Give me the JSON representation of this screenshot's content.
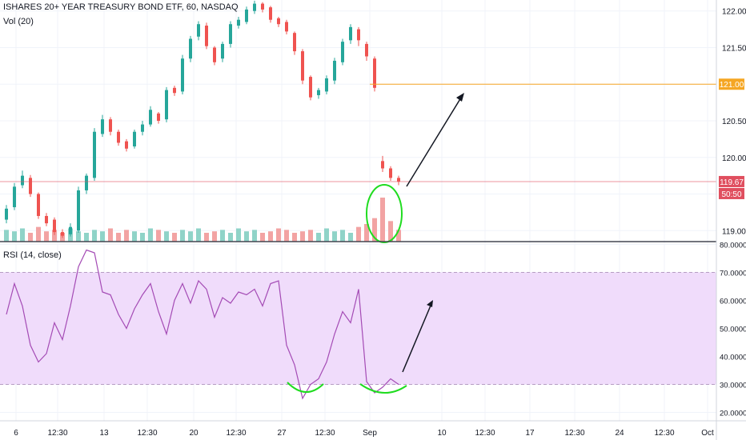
{
  "legend": {
    "symbol": "ISHARES 20+ YEAR TREASURY BOND ETF, 60, NASDAQ",
    "volume": "Vol (20)",
    "rsi": "RSI (14, close)"
  },
  "price_axis": {
    "ticks": [
      "122.00",
      "121.50",
      "121.00",
      "120.50",
      "120.00",
      "119.67",
      "50:50",
      "119.00"
    ],
    "target_label": "121.00",
    "current_label": "119.67",
    "countdown_label": "50:50",
    "target_color": "#f5a623",
    "current_color": "#e04f5f"
  },
  "rsi_axis": {
    "ticks": [
      "80.0000",
      "70.0000",
      "60.0000",
      "50.0000",
      "40.0000",
      "30.0000",
      "20.0000"
    ],
    "band_color": "#f0dcfb",
    "line_color": "#a44bb5"
  },
  "time_axis": {
    "ticks": [
      "6",
      "12:30",
      "13",
      "12:30",
      "20",
      "12:30",
      "27",
      "12:30",
      "Sep",
      "10",
      "12:30",
      "17",
      "12:30",
      "24",
      "12:30",
      "Oct"
    ]
  },
  "chart_data": [
    {
      "type": "candlestick",
      "title": "ISHARES 20+ YEAR TREASURY BOND ETF, 60, NASDAQ",
      "ylim": [
        118.85,
        122.15
      ],
      "annotations": [
        "121.00",
        "119.67"
      ],
      "x": [
        0,
        10,
        20,
        30,
        40,
        50,
        60,
        70,
        80,
        90,
        100,
        110,
        120,
        130,
        140,
        150,
        160,
        170,
        180,
        190,
        200,
        210,
        220,
        230,
        240,
        250,
        260,
        270,
        280,
        290,
        300,
        310,
        320,
        330,
        340,
        350,
        360,
        370,
        380,
        390,
        400,
        410,
        420,
        430,
        440,
        450,
        460,
        470,
        480,
        490
      ],
      "open": [
        119.15,
        119.32,
        119.62,
        119.72,
        119.5,
        119.2,
        119.15,
        118.98,
        118.95,
        119.0,
        119.55,
        119.72,
        120.32,
        120.52,
        120.35,
        120.22,
        120.15,
        120.35,
        120.45,
        120.6,
        120.52,
        120.95,
        120.9,
        121.35,
        121.65,
        121.8,
        121.5,
        121.35,
        121.55,
        121.8,
        121.85,
        122.0,
        122.1,
        122.05,
        121.9,
        121.85,
        121.7,
        121.45,
        121.1,
        120.85,
        120.9,
        121.05,
        121.3,
        121.6,
        121.75,
        121.55,
        121.35,
        119.95,
        119.85,
        119.72
      ],
      "close": [
        119.3,
        119.6,
        119.75,
        119.5,
        119.2,
        119.1,
        118.98,
        118.93,
        119.05,
        119.55,
        119.75,
        120.35,
        120.52,
        120.35,
        120.2,
        120.12,
        120.35,
        120.45,
        120.65,
        120.5,
        120.92,
        120.88,
        121.35,
        121.62,
        121.82,
        121.52,
        121.3,
        121.55,
        121.82,
        121.88,
        122.02,
        122.1,
        122.02,
        121.88,
        121.82,
        121.72,
        121.45,
        121.05,
        120.82,
        120.92,
        121.08,
        121.32,
        121.58,
        121.78,
        121.6,
        121.38,
        120.95,
        119.85,
        119.72,
        119.67
      ],
      "high": [
        119.35,
        119.65,
        119.82,
        119.76,
        119.52,
        119.24,
        119.18,
        119.02,
        119.1,
        119.6,
        119.78,
        120.4,
        120.58,
        120.55,
        120.38,
        120.25,
        120.38,
        120.5,
        120.7,
        120.62,
        120.96,
        120.98,
        121.4,
        121.66,
        121.86,
        121.84,
        121.52,
        121.58,
        121.86,
        121.92,
        122.06,
        122.14,
        122.12,
        122.07,
        121.92,
        121.88,
        121.72,
        121.48,
        121.12,
        120.95,
        121.12,
        121.36,
        121.62,
        121.82,
        121.78,
        121.58,
        121.38,
        120.02,
        119.88,
        119.75
      ],
      "low": [
        119.1,
        119.28,
        119.58,
        119.46,
        119.16,
        119.06,
        118.94,
        118.9,
        118.92,
        118.97,
        119.5,
        119.68,
        120.28,
        120.3,
        120.16,
        120.08,
        120.12,
        120.3,
        120.42,
        120.46,
        120.48,
        120.84,
        120.86,
        121.3,
        121.6,
        121.48,
        121.26,
        121.3,
        121.5,
        121.76,
        121.82,
        121.96,
        121.98,
        121.84,
        121.78,
        121.68,
        121.4,
        121.0,
        120.78,
        120.8,
        120.86,
        121.0,
        121.26,
        121.55,
        121.52,
        121.32,
        120.9,
        119.8,
        119.68,
        119.62
      ],
      "volume": [
        8,
        7,
        9,
        6,
        10,
        7,
        8,
        6,
        9,
        7,
        6,
        8,
        7,
        9,
        6,
        8,
        7,
        6,
        9,
        8,
        7,
        6,
        8,
        7,
        9,
        6,
        7,
        8,
        6,
        9,
        7,
        8,
        6,
        7,
        9,
        8,
        6,
        7,
        8,
        6,
        9,
        7,
        8,
        6,
        10,
        12,
        16,
        30,
        14,
        8
      ]
    },
    {
      "type": "line",
      "title": "RSI (14, close)",
      "ylim": [
        17,
        81
      ],
      "bands": [
        30,
        70
      ],
      "x": [
        0,
        10,
        20,
        30,
        40,
        50,
        60,
        70,
        80,
        90,
        100,
        110,
        120,
        130,
        140,
        150,
        160,
        170,
        180,
        190,
        200,
        210,
        220,
        230,
        240,
        250,
        260,
        270,
        280,
        290,
        300,
        310,
        320,
        330,
        340,
        350,
        360,
        370,
        380,
        390,
        400,
        410,
        420,
        430,
        440,
        450,
        460,
        470,
        480,
        490
      ],
      "values": [
        55,
        66,
        58,
        44,
        38,
        41,
        52,
        46,
        58,
        72,
        78,
        77,
        63,
        62,
        55,
        50,
        57,
        62,
        66,
        56,
        48,
        60,
        66,
        59,
        67,
        64,
        54,
        61,
        59,
        63,
        62,
        64,
        58,
        66,
        67,
        44,
        37,
        25,
        30,
        32,
        38,
        48,
        56,
        52,
        64,
        31,
        27,
        29,
        32,
        30
      ]
    }
  ]
}
